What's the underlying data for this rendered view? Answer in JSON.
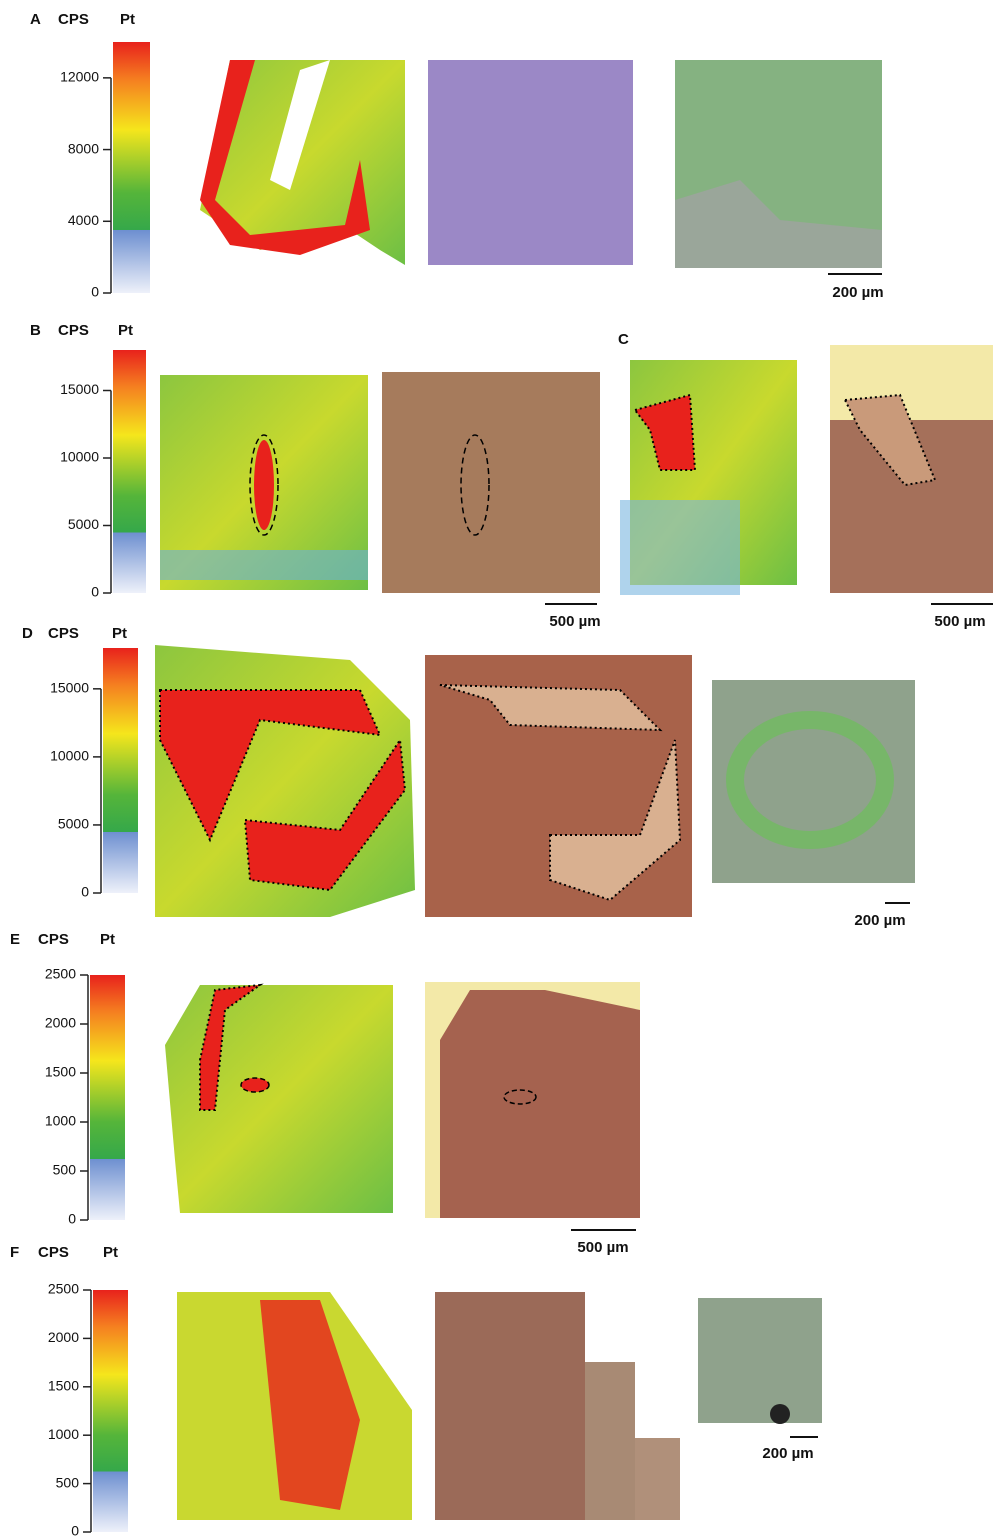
{
  "figure": {
    "panels": [
      {
        "label": "A",
        "cps": "CPS",
        "pt": "Pt",
        "ylim": [
          0,
          14000
        ],
        "ticks": [
          0,
          4000,
          8000,
          12000
        ]
      },
      {
        "label": "B",
        "cps": "CPS",
        "pt": "Pt",
        "ylim": [
          0,
          18000
        ],
        "ticks": [
          0,
          5000,
          10000,
          15000
        ]
      },
      {
        "label": "D",
        "cps": "CPS",
        "pt": "Pt",
        "ylim": [
          0,
          18000
        ],
        "ticks": [
          0,
          5000,
          10000,
          15000
        ]
      },
      {
        "label": "E",
        "cps": "CPS",
        "pt": "Pt",
        "ylim": [
          0,
          2500
        ],
        "ticks": [
          0,
          500,
          1000,
          1500,
          2000,
          2500
        ]
      },
      {
        "label": "F",
        "cps": "CPS",
        "pt": "Pt",
        "ylim": [
          0,
          2500
        ],
        "ticks": [
          0,
          500,
          1000,
          1500,
          2000,
          2500
        ]
      }
    ],
    "panel_c_label": "C",
    "scale_bars": [
      "200 µm",
      "500 µm",
      "500 µm",
      "200 µm",
      "500 µm",
      "200 µm"
    ]
  }
}
